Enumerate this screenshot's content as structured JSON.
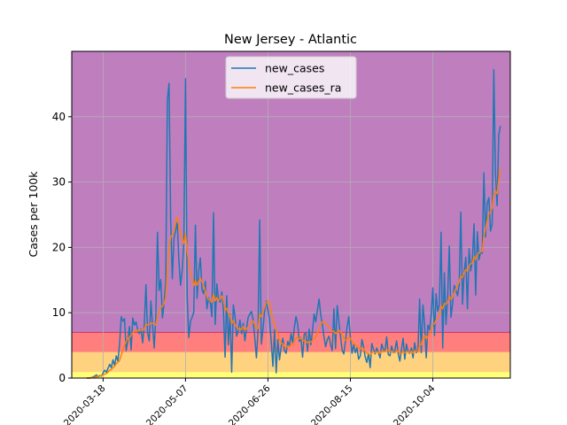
{
  "chart_data": {
    "type": "line",
    "title": "New Jersey - Atlantic",
    "xlabel": "",
    "ylabel": "Cases per 100k",
    "x_start": "2020-03-08",
    "x_end": "2020-11-18",
    "xlim": [
      "2020-02-28",
      "2020-11-20"
    ],
    "ylim": [
      0,
      50
    ],
    "x_ticks": [
      "2020-03-18",
      "2020-05-07",
      "2020-06-26",
      "2020-08-15",
      "2020-10-04"
    ],
    "y_ticks": [
      0,
      10,
      20,
      30,
      40
    ],
    "grid": true,
    "legend_position": "upper center",
    "risk_bands": [
      {
        "from": 0,
        "to": 1,
        "color": "#ffff7a"
      },
      {
        "from": 1,
        "to": 4,
        "color": "#ffd27f"
      },
      {
        "from": 4,
        "to": 7,
        "color": "#ff7f7f"
      },
      {
        "from": 7,
        "to": 50,
        "color": "#bf7fbf"
      }
    ],
    "series": [
      {
        "name": "new_cases",
        "color": "#1f77b4",
        "values": [
          0,
          0,
          0,
          0.1,
          0.2,
          0.3,
          0.5,
          0.2,
          0.4,
          0.3,
          0.8,
          1.2,
          0.9,
          1.5,
          2.1,
          1.6,
          2.8,
          1.9,
          3.4,
          2.6,
          5.2,
          9.4,
          8.7,
          9.1,
          4.2,
          5.8,
          7.9,
          4.3,
          9.2,
          8.1,
          8.6,
          7.3,
          6.8,
          7.5,
          5.4,
          8.2,
          14.3,
          6.9,
          5.7,
          11.8,
          8.1,
          4.6,
          9.5,
          22.3,
          13.4,
          15.1,
          9.2,
          11.4,
          14.8,
          42.6,
          45.1,
          24.2,
          15.2,
          21.4,
          22.6,
          23.8,
          17.9,
          14.2,
          16.5,
          20.9,
          45.8,
          12.6,
          6.2,
          8.7,
          9.3,
          10.1,
          23.4,
          12.2,
          16.3,
          18.4,
          13.5,
          12.9,
          14.8,
          10.6,
          12.3,
          11.7,
          9.4,
          25.3,
          8.2,
          14.4,
          12.1,
          11.6,
          13.2,
          10.4,
          3.2,
          12.6,
          5.1,
          9.8,
          0.9,
          11.2,
          9.5,
          6.4,
          7.3,
          8.9,
          6.8,
          8.4,
          5.7,
          7.6,
          9.3,
          9.8,
          10.2,
          8.9,
          6.2,
          3.1,
          7.4,
          24.2,
          5.2,
          7.6,
          10.3,
          11.8,
          10.4,
          8.9,
          5.6,
          1.8,
          7.4,
          0.8,
          5.9,
          2.8,
          4.7,
          6.1,
          4.2,
          3.8,
          5.6,
          4.9,
          6.8,
          5.4,
          7.7,
          9.4,
          8.3,
          5.6,
          6.2,
          3.2,
          6.7,
          6.9,
          4.1,
          7.5,
          5.1,
          7.2,
          9.8,
          8.6,
          10.4,
          12.1,
          9.7,
          8.2,
          6.3,
          4.8,
          5.9,
          6.4,
          5.1,
          4.2,
          10.6,
          4.5,
          11.1,
          8.7,
          6.4,
          4.3,
          3.7,
          5.6,
          7.8,
          9.4,
          6.2,
          3.8,
          5.1,
          3.9,
          4.6,
          2.9,
          3.4,
          5.9,
          4.8,
          3.2,
          2.4,
          3.8,
          1.6,
          5.3,
          4.4,
          3.7,
          4.6,
          3.9,
          3.1,
          5.2,
          4.4,
          4.1,
          6.3,
          3.6,
          3.4,
          4.9,
          3.9,
          4.2,
          5.7,
          3.8,
          2.6,
          4.4,
          6.1,
          2.9,
          5.2,
          4.1,
          3.8,
          4.6,
          3.1,
          5.4,
          3.9,
          4.3,
          12.1,
          3.9,
          11.2,
          8.3,
          3.1,
          8.1,
          7.4,
          9.6,
          13.8,
          6.5,
          12.9,
          10.2,
          11.3,
          22.3,
          4.6,
          16.1,
          8.2,
          12.4,
          20.2,
          9.3,
          11.4,
          14.2,
          13.5,
          12.6,
          14.3,
          25.4,
          11.3,
          16.2,
          18.5,
          10.6,
          19.8,
          16.4,
          18.1,
          23.6,
          12.7,
          22.4,
          18.1,
          19.3,
          19.1,
          31.4,
          21.6,
          26.8,
          27.6,
          22.5,
          23.6,
          47.2,
          31.3,
          26.4,
          37.2,
          38.6
        ]
      },
      {
        "name": "new_cases_ra",
        "color": "#ff7f0e",
        "values": [
          0,
          0,
          0,
          0.1,
          0.1,
          0.1,
          0.2,
          0.3,
          0.3,
          0.4,
          0.5,
          0.6,
          0.7,
          0.9,
          1.2,
          1.3,
          1.6,
          1.8,
          2.2,
          2.4,
          2.7,
          3.5,
          4.3,
          5.0,
          5.6,
          6.0,
          6.3,
          6.5,
          6.9,
          7.2,
          7.3,
          7.3,
          7.2,
          7.4,
          7.3,
          7.5,
          8.3,
          8.1,
          8.2,
          8.4,
          8.4,
          8.3,
          8.1,
          9.6,
          10.1,
          10.9,
          11.0,
          11.4,
          12.3,
          16.4,
          19.8,
          21.6,
          21.9,
          22.4,
          23.8,
          24.6,
          23.3,
          22.1,
          21.3,
          20.6,
          22.1,
          19.4,
          17.6,
          16.2,
          15.2,
          14.1,
          14.9,
          14.2,
          14.8,
          15.3,
          14.8,
          14.1,
          13.4,
          12.4,
          12.1,
          11.9,
          11.6,
          12.9,
          11.8,
          12.3,
          11.9,
          12.1,
          12.6,
          11.9,
          10.4,
          10.7,
          9.8,
          9.6,
          8.3,
          8.8,
          8.2,
          7.8,
          7.5,
          7.6,
          7.4,
          7.9,
          7.3,
          7.6,
          7.8,
          8.2,
          8.6,
          8.7,
          8.2,
          7.5,
          7.6,
          9.8,
          9.4,
          10.1,
          10.9,
          11.6,
          11.8,
          11.6,
          10.2,
          8.6,
          8.4,
          7.1,
          6.8,
          5.9,
          5.4,
          5.2,
          4.9,
          4.7,
          4.9,
          4.8,
          5.1,
          5.2,
          5.6,
          6.1,
          6.2,
          6.0,
          6.1,
          5.8,
          5.7,
          5.6,
          5.4,
          5.6,
          5.5,
          5.7,
          6.1,
          6.3,
          6.9,
          7.5,
          8.2,
          8.6,
          8.7,
          8.4,
          8.1,
          7.8,
          7.5,
          7.1,
          7.2,
          6.8,
          7.0,
          7.3,
          7.1,
          6.6,
          6.1,
          5.8,
          5.9,
          6.2,
          6.1,
          5.6,
          5.4,
          5.0,
          4.9,
          4.6,
          4.4,
          4.7,
          4.5,
          4.1,
          3.8,
          3.7,
          3.5,
          3.9,
          4.0,
          3.9,
          4.0,
          3.9,
          3.8,
          4.1,
          4.0,
          4.1,
          4.4,
          4.2,
          4.0,
          4.1,
          4.0,
          3.9,
          4.2,
          4.1,
          3.8,
          3.8,
          4.1,
          3.9,
          4.0,
          4.0,
          3.9,
          4.1,
          3.8,
          4.2,
          4.1,
          4.0,
          5.1,
          5.1,
          6.1,
          6.5,
          6.0,
          6.4,
          6.7,
          7.3,
          8.3,
          8.3,
          8.9,
          9.1,
          9.6,
          11.0,
          10.6,
          11.4,
          11.3,
          11.6,
          12.5,
          12.1,
          12.3,
          13.1,
          13.6,
          14.2,
          14.8,
          15.6,
          15.4,
          16.1,
          16.6,
          16.3,
          17.2,
          17.5,
          17.6,
          18.6,
          18.1,
          18.9,
          19.2,
          19.3,
          19.4,
          21.8,
          22.8,
          24.1,
          25.2,
          25.4,
          26.1,
          28.2,
          28.6,
          28.2,
          30.4,
          32.1
        ]
      }
    ]
  }
}
